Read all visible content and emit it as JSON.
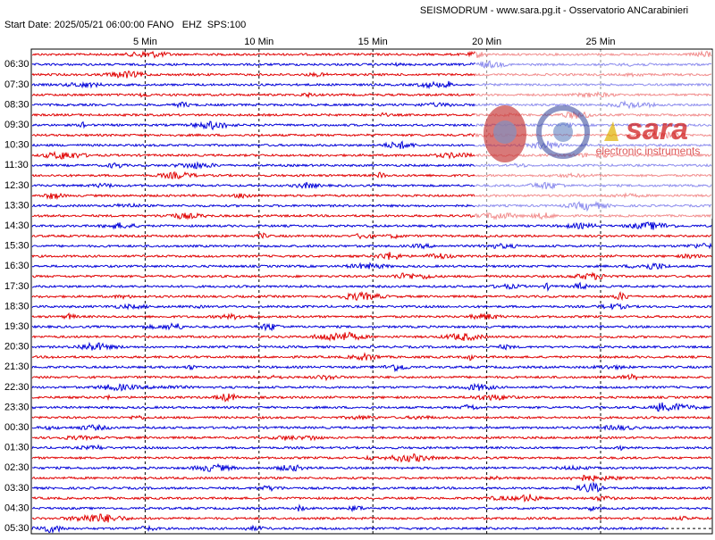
{
  "header": {
    "title": "SEISMODRUM - www.sara.pg.it - Osservatorio ANCarabinieri",
    "info": "Start Date: 2025/05/21 06:00:00 FANO   EHZ  SPS:100"
  },
  "minute_ticks": [
    "5 Min",
    "10 Min",
    "15 Min",
    "20 Min",
    "25 Min"
  ],
  "row_labels": [
    "06:30",
    "07:30",
    "08:30",
    "09:30",
    "10:30",
    "11:30",
    "12:30",
    "13:30",
    "14:30",
    "15:30",
    "16:30",
    "17:30",
    "18:30",
    "19:30",
    "20:30",
    "21:30",
    "22:30",
    "23:30",
    "00:30",
    "01:30",
    "02:30",
    "03:30",
    "04:30",
    "05:30"
  ],
  "trace_colors": [
    "#e00000",
    "#0000d8"
  ],
  "logo": {
    "name": "sara",
    "tagline": "electronic instruments"
  }
}
